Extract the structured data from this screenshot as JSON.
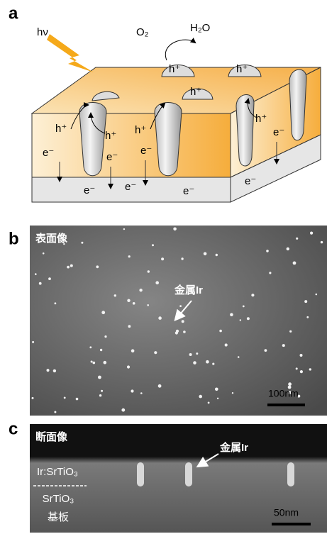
{
  "panel_a": {
    "label": "a",
    "light": "hν",
    "oxygen": "O₂",
    "water": "H₂O",
    "holes": [
      "h⁺",
      "h⁺",
      "h⁺",
      "h⁺",
      "h⁺",
      "h⁺",
      "h⁺"
    ],
    "electrons": [
      "e⁻",
      "e⁻",
      "e⁻",
      "e⁻",
      "e⁻",
      "e⁻",
      "e⁻",
      "e⁻"
    ]
  },
  "panel_b": {
    "label": "b",
    "title": "表面像",
    "annotation": "金属Ir",
    "scale_bar": "100nm"
  },
  "panel_c": {
    "label": "c",
    "title": "断面像",
    "annotation": "金属Ir",
    "film": "Ir:SrTiO₃",
    "substrate_line1": "SrTiO₃",
    "substrate_line2": "基板",
    "scale_bar": "50nm"
  }
}
